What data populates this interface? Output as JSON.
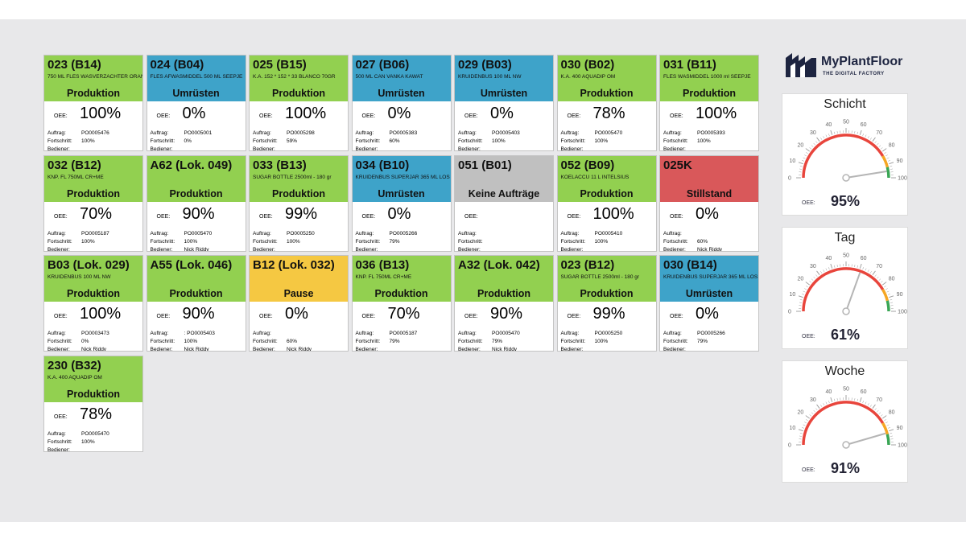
{
  "brand": {
    "name": "MyPlantFloor",
    "tagline": "THE DIGITAL FACTORY"
  },
  "labels": {
    "oee": "OEE:",
    "order": "Auftrag:",
    "progress": "Fortschritt:",
    "operator": "Bediener:"
  },
  "status_colors": {
    "Produktion": "#92d050",
    "Umrüsten": "#3ea3c9",
    "Keine Aufträge": "#c0c0c0",
    "Stillstand": "#d9585a",
    "Pause": "#f5c842"
  },
  "machines": [
    {
      "code": "023 (B14)",
      "product": "750 ML FLES WASVERZACHTER ORANJE",
      "status": "Produktion",
      "oee": "100%",
      "order": "PO0005476",
      "progress": "100%",
      "operator": ""
    },
    {
      "code": "024 (B04)",
      "product": "FLES AFWASMIDDEL 500 ML SEEPJE",
      "status": "Umrüsten",
      "oee": "0%",
      "order": "PO0005001",
      "progress": "0%",
      "operator": ""
    },
    {
      "code": "025 (B15)",
      "product": "K.A. 152 * 152 * 33  BLANCO 70GR",
      "status": "Produktion",
      "oee": "100%",
      "order": "PO0005298",
      "progress": "59%",
      "operator": ""
    },
    {
      "code": "027 (B06)",
      "product": "500 ML CAN VANKA KAWAT",
      "status": "Umrüsten",
      "oee": "0%",
      "order": "PO0005383",
      "progress": "60%",
      "operator": ""
    },
    {
      "code": "029 (B03)",
      "product": "KRUIDENBUS 100 ML NW",
      "status": "Umrüsten",
      "oee": "0%",
      "order": "PO0005403",
      "progress": "100%",
      "operator": ""
    },
    {
      "code": "030 (B02)",
      "product": "K.A. 400 AQUADIP OM",
      "status": "Produktion",
      "oee": "78%",
      "order": "PO0005470",
      "progress": "100%",
      "operator": ""
    },
    {
      "code": "031 (B11)",
      "product": "FLES WASMIDDEL 1000 ml SEEPJE",
      "status": "Produktion",
      "oee": "100%",
      "order": "PO0005393",
      "progress": "100%",
      "operator": ""
    },
    {
      "code": "032 (B12)",
      "product": "KNP. FL 750ML CR+ME",
      "status": "Produktion",
      "oee": "70%",
      "order": "PO0005187",
      "progress": "100%",
      "operator": ""
    },
    {
      "code": "A62 (Lok. 049)",
      "product": "",
      "status": "Produktion",
      "oee": "90%",
      "order": "PO0005470",
      "progress": "100%",
      "operator": "Nick Riddy"
    },
    {
      "code": "033 (B13)",
      "product": "SUGAR BOTTLE 2500ml - 180 gr",
      "status": "Produktion",
      "oee": "99%",
      "order": "PO0005250",
      "progress": "100%",
      "operator": ""
    },
    {
      "code": "034 (B10)",
      "product": "KRUIDENBUS SUPERJAR 365 ML LOS",
      "status": "Umrüsten",
      "oee": "0%",
      "order": "PO0005266",
      "progress": "79%",
      "operator": ""
    },
    {
      "code": "051 (B01)",
      "product": "",
      "status": "Keine Aufträge",
      "oee": "",
      "order": "",
      "progress": "",
      "operator": ""
    },
    {
      "code": "052 (B09)",
      "product": "KOELACCU 11 L INTELSIUS",
      "status": "Produktion",
      "oee": "100%",
      "order": "PO0005410",
      "progress": "100%",
      "operator": ""
    },
    {
      "code": "025K",
      "product": "",
      "status": "Stillstand",
      "oee": "0%",
      "order": "",
      "progress": "60%",
      "operator": "Nick Riddy"
    },
    {
      "code": "B03 (Lok. 029)",
      "product": "KRUIDENBUS 100 ML NW",
      "status": "Produktion",
      "oee": "100%",
      "order": "PO0003473",
      "progress": "0%",
      "operator": "Nick Riddy"
    },
    {
      "code": "A55 (Lok. 046)",
      "product": "",
      "status": "Produktion",
      "oee": "90%",
      "order": ": PO0005403",
      "progress": "100%",
      "operator": "Nick Riddy"
    },
    {
      "code": "B12 (Lok. 032)",
      "product": "",
      "status": "Pause",
      "oee": "0%",
      "order": "",
      "progress": "60%",
      "operator": "Nick Riddy"
    },
    {
      "code": "036 (B13)",
      "product": "KNP. FL 750ML CR+ME",
      "status": "Produktion",
      "oee": "70%",
      "order": "PO0005187",
      "progress": "79%",
      "operator": ""
    },
    {
      "code": "A32 (Lok. 042)",
      "product": "",
      "status": "Produktion",
      "oee": "90%",
      "order": "PO0005470",
      "progress": "79%",
      "operator": "Nick Riddy"
    },
    {
      "code": "023 (B12)",
      "product": "SUGAR BOTTLE 2500ml - 180 gr",
      "status": "Produktion",
      "oee": "99%",
      "order": "PO0005250",
      "progress": "100%",
      "operator": ""
    },
    {
      "code": "030 (B14)",
      "product": "KRUIDENBUS SUPERJAR 365 ML LOS",
      "status": "Umrüsten",
      "oee": "0%",
      "order": "PO0005266",
      "progress": "79%",
      "operator": ""
    },
    {
      "code": "230 (B32)",
      "product": "K.A. 400 AQUADIP OM",
      "status": "Produktion",
      "oee": "78%",
      "order": "PO0005470",
      "progress": "100%",
      "operator": ""
    }
  ],
  "gauges": [
    {
      "title": "Schicht",
      "oee_label": "OEE:",
      "value": 95,
      "value_label": "95%"
    },
    {
      "title": "Tag",
      "oee_label": "OEE:",
      "value": 61,
      "value_label": "61%"
    },
    {
      "title": "Woche",
      "oee_label": "OEE:",
      "value": 91,
      "value_label": "91%"
    }
  ],
  "gauge_ticks": [
    "0",
    "10",
    "20",
    "30",
    "40",
    "50",
    "60",
    "70",
    "80",
    "90",
    "100"
  ],
  "gauge_colors": {
    "red": "#e8453c",
    "orange": "#f5a623",
    "green": "#3aa655",
    "needle": "#b5b5b5"
  }
}
